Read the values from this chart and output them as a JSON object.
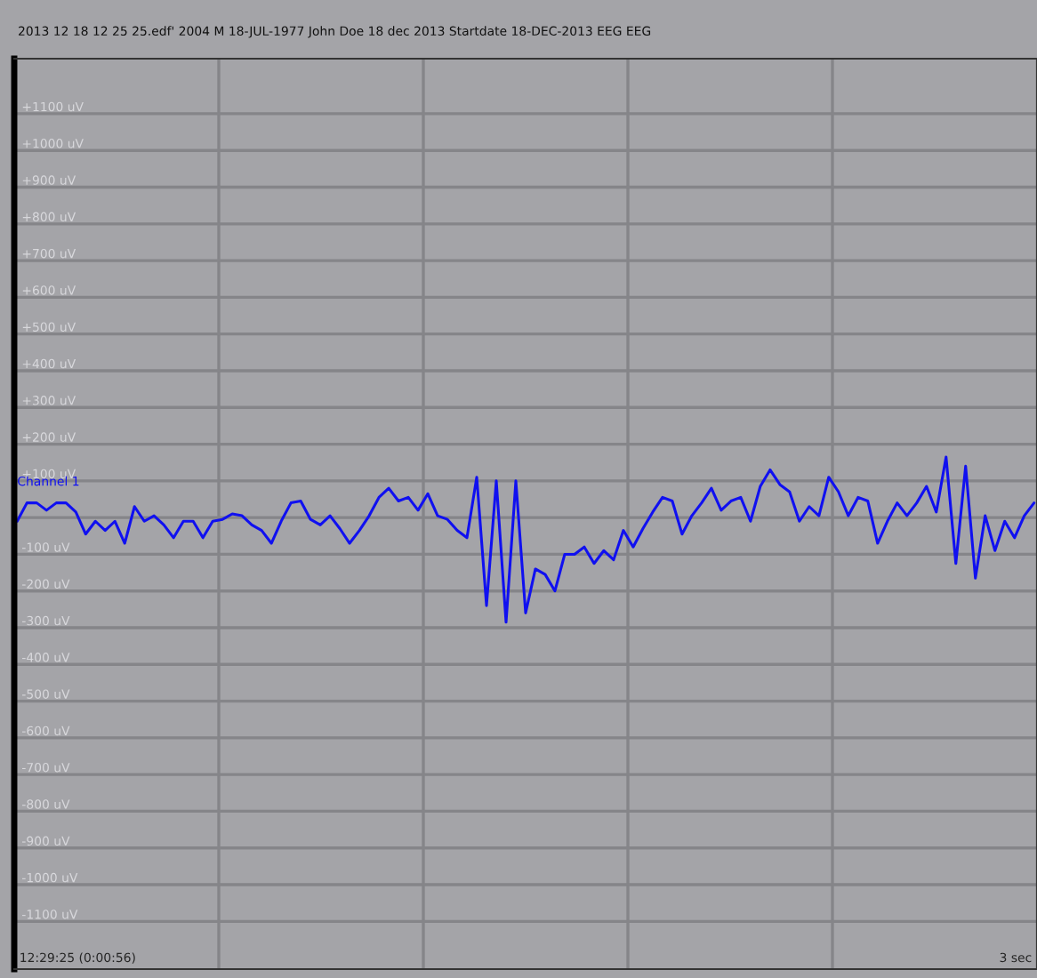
{
  "chart_data": {
    "type": "line",
    "title": "2013 12 18 12 25 25.edf' 2004 M 18-JUL-1977 John Doe 18 dec 2013 Startdate 18-DEC-2013 EEG EEG",
    "categories": [
      null,
      null,
      null,
      null,
      null,
      null,
      null,
      null,
      null,
      null,
      null,
      null,
      null,
      null,
      null,
      null,
      null,
      null,
      null,
      null,
      null,
      null,
      null,
      null,
      null,
      null,
      null,
      null,
      null,
      null,
      null,
      null,
      null,
      null,
      null,
      null,
      null,
      null,
      null,
      null,
      null,
      null,
      null,
      null,
      null,
      null,
      null,
      null,
      null,
      null,
      null,
      null,
      null,
      null,
      null,
      null,
      null,
      null,
      null,
      null,
      null,
      null,
      null,
      null,
      null,
      null,
      null,
      null,
      null,
      null,
      null,
      null,
      null,
      null,
      null,
      null,
      null,
      null,
      null,
      null,
      null,
      null,
      null,
      null,
      null,
      null,
      null,
      null,
      null,
      null,
      null,
      null,
      null,
      null,
      null,
      null,
      null,
      null,
      null,
      null,
      null,
      null,
      null,
      null,
      null
    ],
    "series": [
      {
        "name": "Channel 1",
        "color": "#1010f0",
        "values": [
          -10,
          40,
          40,
          20,
          40,
          40,
          15,
          -45,
          -10,
          -35,
          -10,
          -70,
          30,
          -10,
          5,
          -20,
          -55,
          -10,
          -10,
          -55,
          -10,
          -5,
          10,
          5,
          -20,
          -35,
          -70,
          -10,
          40,
          45,
          -5,
          -20,
          5,
          -30,
          -70,
          -35,
          5,
          55,
          80,
          45,
          55,
          20,
          65,
          5,
          -5,
          -35,
          -55,
          110,
          -240,
          100,
          -285,
          100,
          -260,
          -140,
          -155,
          -200,
          -100,
          -100,
          -80,
          -125,
          -90,
          -115,
          -35,
          -80,
          -30,
          15,
          55,
          45,
          -45,
          5,
          40,
          80,
          20,
          45,
          55,
          -10,
          85,
          130,
          90,
          70,
          -10,
          30,
          5,
          110,
          70,
          5,
          55,
          45,
          -70,
          -10,
          40,
          5,
          40,
          85,
          15,
          165,
          -125,
          140,
          -165,
          5,
          -90,
          -10,
          -55,
          5,
          40
        ]
      }
    ],
    "ylim": [
      -1230,
      1250
    ],
    "yticks": [
      {
        "value": 1100,
        "label": "+1100 uV"
      },
      {
        "value": 1000,
        "label": "+1000 uV"
      },
      {
        "value": 900,
        "label": "+900 uV"
      },
      {
        "value": 800,
        "label": "+800 uV"
      },
      {
        "value": 700,
        "label": "+700 uV"
      },
      {
        "value": 600,
        "label": "+600 uV"
      },
      {
        "value": 500,
        "label": "+500 uV"
      },
      {
        "value": 400,
        "label": "+400 uV"
      },
      {
        "value": 300,
        "label": "+300 uV"
      },
      {
        "value": 200,
        "label": "+200 uV"
      },
      {
        "value": 100,
        "label": "+100 uV"
      },
      {
        "value": 0,
        "label": null
      },
      {
        "value": -100,
        "label": "-100 uV"
      },
      {
        "value": -200,
        "label": "-200 uV"
      },
      {
        "value": -300,
        "label": "-300 uV"
      },
      {
        "value": -400,
        "label": "-400 uV"
      },
      {
        "value": -500,
        "label": "-500 uV"
      },
      {
        "value": -600,
        "label": "-600 uV"
      },
      {
        "value": -700,
        "label": "-700 uV"
      },
      {
        "value": -800,
        "label": "-800 uV"
      },
      {
        "value": -900,
        "label": "-900 uV"
      },
      {
        "value": -1000,
        "label": "-1000 uV"
      },
      {
        "value": -1100,
        "label": "-1100 uV"
      }
    ],
    "grid": true,
    "tick_labels": "y",
    "annotations": [
      "12:29:25 (0:00:56)",
      "3 sec"
    ]
  }
}
